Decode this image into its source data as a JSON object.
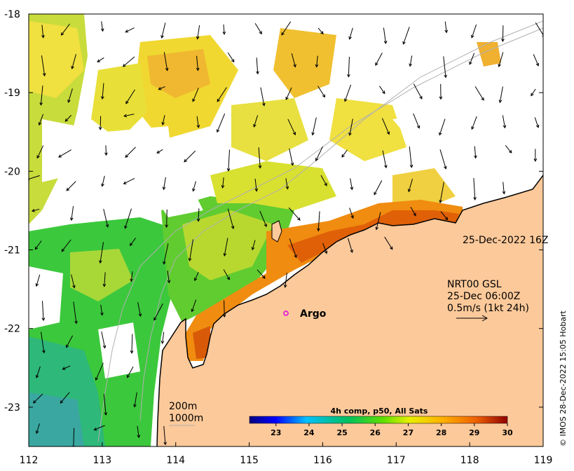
{
  "map": {
    "x_ticks": [
      "112",
      "113",
      "114",
      "115",
      "116",
      "117",
      "118",
      "119"
    ],
    "y_ticks": [
      "-18",
      "-19",
      "-20",
      "-21",
      "-22",
      "-23"
    ],
    "lon_range": [
      112,
      119
    ],
    "lat_range": [
      -23.5,
      -18
    ]
  },
  "annotations": {
    "date_label": "25-Dec-2022 16Z",
    "current_source": "NRT00 GSL",
    "current_time": "25-Dec 06:00Z",
    "current_scale": "0.5m/s (1kt 24h)",
    "argo_label": "Argo",
    "isobath_200": "200m",
    "isobath_1000": "1000m"
  },
  "colorbar": {
    "title": "4h comp, p50, All Sats",
    "ticks": [
      "23",
      "24",
      "25",
      "26",
      "27",
      "28",
      "29",
      "30"
    ],
    "range": [
      22.2,
      30
    ]
  },
  "credit": "© IMOS 28-Dec-2022 15:05 Hobart",
  "colors": {
    "land": "#fcc99a",
    "coast": "#000000",
    "argo_marker": "#e000e0",
    "isobath": "#b0b0b0"
  }
}
